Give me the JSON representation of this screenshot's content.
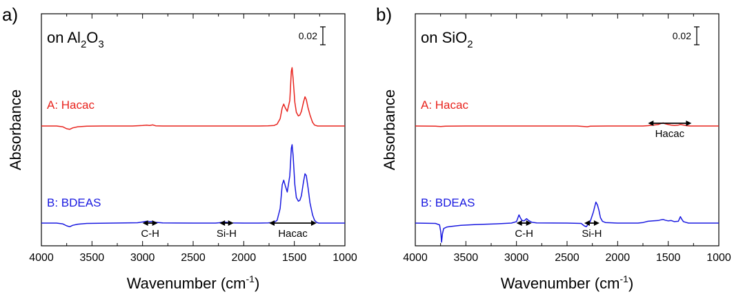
{
  "chart_data": [
    {
      "type": "line",
      "panel_label": "a)",
      "title_parts": [
        "on Al",
        "2",
        "O",
        "3"
      ],
      "xlabel": "Wavenumber (cm",
      "xlabel_sup": "-1",
      "xlabel_end": ")",
      "ylabel": "Absorbance",
      "xlim": [
        4000,
        1000
      ],
      "x_ticks": [
        "4000",
        "3500",
        "3000",
        "2500",
        "2000",
        "1500",
        "1000"
      ],
      "scale_bar_label": "0.02",
      "series": [
        {
          "name": "A: Hacac",
          "color": "#e8221c",
          "baseline": 0.5,
          "points": [
            [
              4000,
              0.5
            ],
            [
              3850,
              0.5
            ],
            [
              3790,
              0.496
            ],
            [
              3750,
              0.485
            ],
            [
              3720,
              0.482
            ],
            [
              3690,
              0.49
            ],
            [
              3640,
              0.496
            ],
            [
              3550,
              0.499
            ],
            [
              3400,
              0.5
            ],
            [
              3100,
              0.5
            ],
            [
              3000,
              0.503
            ],
            [
              2960,
              0.505
            ],
            [
              2930,
              0.503
            ],
            [
              2900,
              0.506
            ],
            [
              2870,
              0.501
            ],
            [
              2800,
              0.5
            ],
            [
              2500,
              0.5
            ],
            [
              2200,
              0.5
            ],
            [
              1850,
              0.5
            ],
            [
              1760,
              0.501
            ],
            [
              1700,
              0.503
            ],
            [
              1670,
              0.51
            ],
            [
              1640,
              0.54
            ],
            [
              1620,
              0.6
            ],
            [
              1605,
              0.62
            ],
            [
              1590,
              0.6
            ],
            [
              1570,
              0.58
            ],
            [
              1545,
              0.64
            ],
            [
              1530,
              0.8
            ],
            [
              1522,
              0.82
            ],
            [
              1512,
              0.76
            ],
            [
              1495,
              0.63
            ],
            [
              1480,
              0.575
            ],
            [
              1460,
              0.555
            ],
            [
              1445,
              0.56
            ],
            [
              1430,
              0.58
            ],
            [
              1410,
              0.63
            ],
            [
              1395,
              0.66
            ],
            [
              1382,
              0.645
            ],
            [
              1365,
              0.6
            ],
            [
              1345,
              0.56
            ],
            [
              1320,
              0.52
            ],
            [
              1300,
              0.505
            ],
            [
              1270,
              0.5
            ],
            [
              1200,
              0.5
            ],
            [
              1000,
              0.5
            ]
          ]
        },
        {
          "name": "B: BDEAS",
          "color": "#1818e0",
          "baseline": 0.0,
          "points": [
            [
              4000,
              0.0
            ],
            [
              3850,
              0.0
            ],
            [
              3790,
              -0.004
            ],
            [
              3750,
              -0.015
            ],
            [
              3720,
              -0.02
            ],
            [
              3690,
              -0.012
            ],
            [
              3640,
              -0.006
            ],
            [
              3550,
              -0.002
            ],
            [
              3300,
              0.0
            ],
            [
              3050,
              0.002
            ],
            [
              3000,
              0.006
            ],
            [
              2960,
              0.01
            ],
            [
              2930,
              0.008
            ],
            [
              2900,
              0.009
            ],
            [
              2870,
              0.004
            ],
            [
              2800,
              0.001
            ],
            [
              2500,
              0.0
            ],
            [
              2280,
              0.0
            ],
            [
              2240,
              0.002
            ],
            [
              2200,
              0.006
            ],
            [
              2170,
              0.004
            ],
            [
              2130,
              0.001
            ],
            [
              2000,
              0.0
            ],
            [
              1850,
              0.0
            ],
            [
              1760,
              0.001
            ],
            [
              1700,
              0.004
            ],
            [
              1670,
              0.015
            ],
            [
              1640,
              0.08
            ],
            [
              1620,
              0.21
            ],
            [
              1605,
              0.235
            ],
            [
              1590,
              0.205
            ],
            [
              1570,
              0.17
            ],
            [
              1545,
              0.26
            ],
            [
              1530,
              0.41
            ],
            [
              1522,
              0.43
            ],
            [
              1512,
              0.37
            ],
            [
              1495,
              0.21
            ],
            [
              1480,
              0.14
            ],
            [
              1460,
              0.12
            ],
            [
              1445,
              0.125
            ],
            [
              1430,
              0.15
            ],
            [
              1410,
              0.225
            ],
            [
              1395,
              0.27
            ],
            [
              1382,
              0.26
            ],
            [
              1365,
              0.195
            ],
            [
              1345,
              0.11
            ],
            [
              1320,
              0.045
            ],
            [
              1300,
              0.015
            ],
            [
              1280,
              0.004
            ],
            [
              1260,
              0.0
            ],
            [
              1000,
              0.0
            ]
          ]
        }
      ],
      "annotations": [
        {
          "label": "C-H",
          "x_from": 3000,
          "x_to": 2850
        },
        {
          "label": "Si-H",
          "x_from": 2240,
          "x_to": 2100
        },
        {
          "label": "Hacac",
          "x_from": 1750,
          "x_to": 1280
        }
      ]
    },
    {
      "type": "line",
      "panel_label": "b)",
      "title_parts": [
        "on SiO",
        "2",
        "",
        ""
      ],
      "xlabel": "Wavenumber (cm",
      "xlabel_sup": "-1",
      "xlabel_end": ")",
      "ylabel": "Absorbance",
      "xlim": [
        4000,
        1000
      ],
      "x_ticks": [
        "4000",
        "3500",
        "3000",
        "2500",
        "2000",
        "1500",
        "1000"
      ],
      "scale_bar_label": "0.02",
      "series": [
        {
          "name": "A: Hacac",
          "color": "#e8221c",
          "baseline": 0.5,
          "points": [
            [
              4000,
              0.5
            ],
            [
              3800,
              0.499
            ],
            [
              3750,
              0.497
            ],
            [
              3700,
              0.499
            ],
            [
              3500,
              0.5
            ],
            [
              3000,
              0.5
            ],
            [
              2400,
              0.5
            ],
            [
              2330,
              0.497
            ],
            [
              2300,
              0.496
            ],
            [
              2270,
              0.499
            ],
            [
              2100,
              0.5
            ],
            [
              1750,
              0.5
            ],
            [
              1700,
              0.502
            ],
            [
              1650,
              0.505
            ],
            [
              1600,
              0.508
            ],
            [
              1570,
              0.514
            ],
            [
              1550,
              0.517
            ],
            [
              1530,
              0.512
            ],
            [
              1500,
              0.508
            ],
            [
              1470,
              0.505
            ],
            [
              1440,
              0.503
            ],
            [
              1400,
              0.505
            ],
            [
              1380,
              0.508
            ],
            [
              1360,
              0.506
            ],
            [
              1320,
              0.502
            ],
            [
              1280,
              0.5
            ],
            [
              1000,
              0.5
            ]
          ]
        },
        {
          "name": "B: BDEAS",
          "color": "#1818e0",
          "baseline": 0.0,
          "points": [
            [
              4000,
              0.0
            ],
            [
              3800,
              -0.002
            ],
            [
              3760,
              -0.01
            ],
            [
              3748,
              -0.05
            ],
            [
              3740,
              -0.105
            ],
            [
              3732,
              -0.06
            ],
            [
              3720,
              -0.03
            ],
            [
              3690,
              -0.022
            ],
            [
              3640,
              -0.018
            ],
            [
              3550,
              -0.012
            ],
            [
              3400,
              -0.008
            ],
            [
              3200,
              -0.004
            ],
            [
              3050,
              0.0
            ],
            [
              3000,
              0.008
            ],
            [
              2975,
              0.045
            ],
            [
              2962,
              0.03
            ],
            [
              2945,
              0.014
            ],
            [
              2925,
              0.012
            ],
            [
              2900,
              0.024
            ],
            [
              2880,
              0.014
            ],
            [
              2850,
              0.005
            ],
            [
              2800,
              0.001
            ],
            [
              2500,
              0.0
            ],
            [
              2360,
              -0.002
            ],
            [
              2330,
              -0.015
            ],
            [
              2310,
              -0.02
            ],
            [
              2290,
              -0.005
            ],
            [
              2270,
              0.01
            ],
            [
              2240,
              0.06
            ],
            [
              2215,
              0.115
            ],
            [
              2200,
              0.1
            ],
            [
              2185,
              0.07
            ],
            [
              2170,
              0.03
            ],
            [
              2150,
              0.01
            ],
            [
              2120,
              0.003
            ],
            [
              2000,
              0.0
            ],
            [
              1800,
              0.0
            ],
            [
              1750,
              0.003
            ],
            [
              1700,
              0.01
            ],
            [
              1650,
              0.012
            ],
            [
              1600,
              0.014
            ],
            [
              1570,
              0.018
            ],
            [
              1550,
              0.02
            ],
            [
              1530,
              0.016
            ],
            [
              1500,
              0.012
            ],
            [
              1470,
              0.014
            ],
            [
              1440,
              0.008
            ],
            [
              1400,
              0.01
            ],
            [
              1380,
              0.035
            ],
            [
              1370,
              0.025
            ],
            [
              1350,
              0.008
            ],
            [
              1320,
              0.003
            ],
            [
              1300,
              0.0
            ],
            [
              1000,
              0.0
            ]
          ]
        }
      ],
      "annotations": [
        {
          "label": "C-H",
          "x_from": 3000,
          "x_to": 2850
        },
        {
          "label": "Si-H",
          "x_from": 2330,
          "x_to": 2180
        },
        {
          "label": "Hacac",
          "x_from": 1700,
          "x_to": 1270
        }
      ]
    }
  ]
}
